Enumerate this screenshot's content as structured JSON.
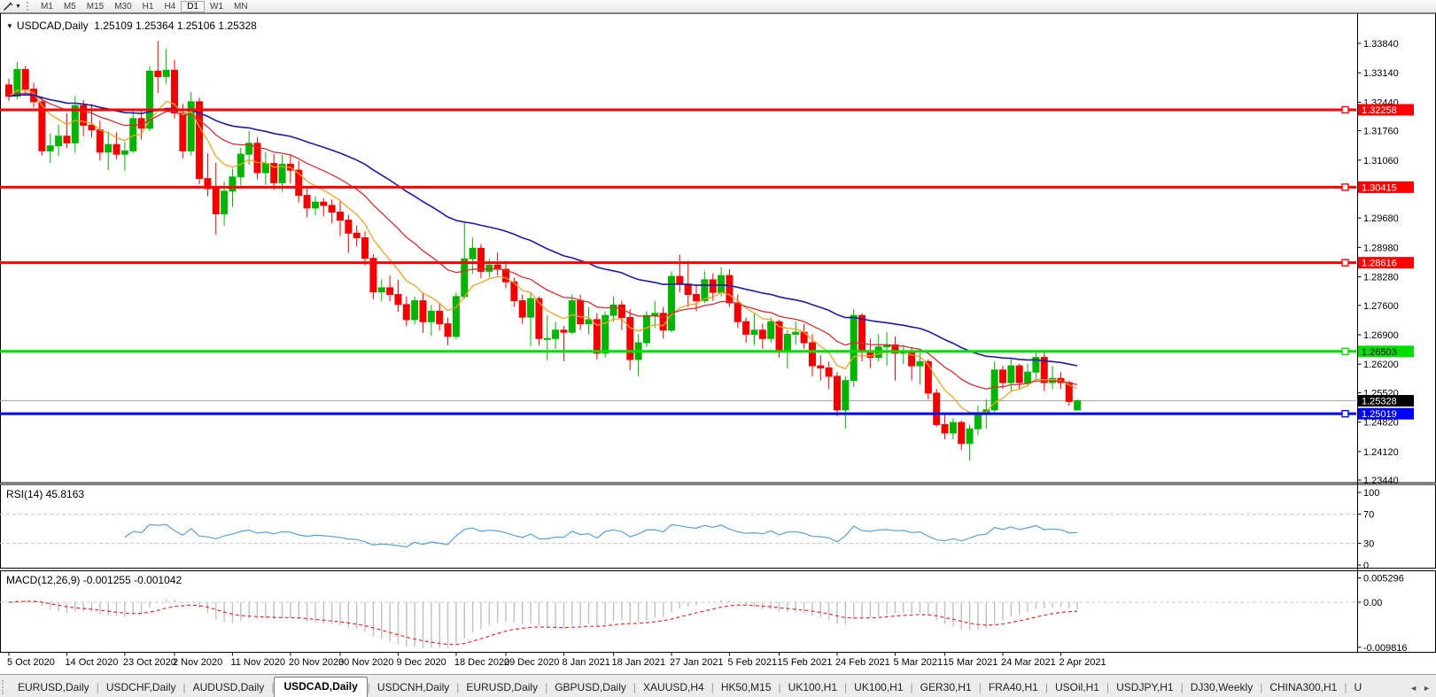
{
  "toolbar": {
    "timeframes": [
      "M1",
      "M5",
      "M15",
      "M30",
      "H1",
      "H4",
      "D1",
      "W1",
      "MN"
    ],
    "active_timeframe": "D1"
  },
  "chart": {
    "title_symbol": "USDCAD,Daily",
    "title_ohlc": "1.25109 1.25364 1.25106 1.25328"
  },
  "rsi": {
    "label": "RSI(14) 45.8163",
    "period": 14,
    "value": 45.8163,
    "axis_ticks": [
      100,
      70,
      30,
      0
    ],
    "level_lines": [
      70,
      30
    ]
  },
  "macd": {
    "label": "MACD(12,26,9) -0.001255 -0.001042",
    "params": [
      12,
      26,
      9
    ],
    "macd_value": -0.001255,
    "signal_value": -0.001042,
    "axis_ticks": [
      "0.005296",
      "0.00",
      "-0.009816"
    ],
    "axis_tick_values": [
      0.005296,
      0,
      -0.009816
    ]
  },
  "tabs": {
    "items": [
      "EURUSD,Daily",
      "USDCHF,Daily",
      "AUDUSD,Daily",
      "USDCAD,Daily",
      "USDCNH,Daily",
      "EURUSD,Daily",
      "GBPUSD,Daily",
      "XAUUSD,H4",
      "HK50,M15",
      "UK100,H1",
      "UK100,H1",
      "GER30,H1",
      "FRA40,H1",
      "USOil,H1",
      "USDJPY,H1",
      "DJ30,Weekly",
      "CHINA300,H1"
    ],
    "active_index": 3,
    "overflow_tab": "U",
    "scroll_left_arrow": "◄",
    "scroll_right_arrow": "►"
  },
  "colors": {
    "bull": "#00b400",
    "bear": "#f40000",
    "ma_fast": "#eda328",
    "ma_mid": "#d03030",
    "ma_slow": "#1a1aa8",
    "level_red": "#fe0000",
    "level_green": "#00dd00",
    "level_blue": "#0000fe",
    "current_line": "#a8a8a8",
    "current_box": "#000000",
    "rsi_line": "#58a0d8",
    "macd_hist": "#c0c0c0",
    "macd_signal": "#e03030",
    "dashed_level": "#c8c8c8",
    "axis_text": "#000000"
  },
  "chart_data": {
    "type": "candlestick",
    "symbol": "USDCAD",
    "period": "Daily",
    "title": "USDCAD,Daily 1.25109 1.25364 1.25106 1.25328",
    "current_candle": {
      "open": 1.25109,
      "high": 1.25364,
      "low": 1.25106,
      "close": 1.25328
    },
    "y_ticks": [
      "1.33840",
      "1.33140",
      "1.32440",
      "1.31760",
      "1.31060",
      "1.30360",
      "1.29680",
      "1.28980",
      "1.28280",
      "1.27600",
      "1.26900",
      "1.26200",
      "1.25520",
      "1.24820",
      "1.24120",
      "1.23440"
    ],
    "ylim": [
      1.2338,
      1.3456
    ],
    "grid": false,
    "levels": [
      {
        "value": 1.32258,
        "label": "1.32258",
        "color_key": "level_red",
        "kind": "resistance"
      },
      {
        "value": 1.30415,
        "label": "1.30415",
        "color_key": "level_red",
        "kind": "resistance"
      },
      {
        "value": 1.28616,
        "label": "1.28616",
        "color_key": "level_red",
        "kind": "resistance"
      },
      {
        "value": 1.26503,
        "label": "1.26503",
        "color_key": "level_green",
        "kind": "resistance"
      },
      {
        "value": 1.25019,
        "label": "1.25019",
        "color_key": "level_blue",
        "kind": "support"
      }
    ],
    "current_price": {
      "value": 1.25328,
      "label": "1.25328"
    },
    "moving_averages": [
      {
        "name": "fast",
        "period": 8,
        "method": "ema",
        "color_key": "ma_fast"
      },
      {
        "name": "mid",
        "period": 20,
        "method": "ema",
        "color_key": "ma_mid"
      },
      {
        "name": "slow",
        "period": 45,
        "method": "ema",
        "color_key": "ma_slow"
      }
    ],
    "x_labels": [
      [
        0,
        "5 Oct 2020"
      ],
      [
        7,
        "14 Oct 2020"
      ],
      [
        14,
        "23 Oct 2020"
      ],
      [
        20,
        "2 Nov 2020"
      ],
      [
        27,
        "11 Nov 2020"
      ],
      [
        34,
        "20 Nov 2020"
      ],
      [
        40,
        "30 Nov 2020"
      ],
      [
        47,
        "9 Dec 2020"
      ],
      [
        54,
        "18 Dec 2020"
      ],
      [
        60,
        "29 Dec 2020"
      ],
      [
        67,
        "8 Jan 2021"
      ],
      [
        73,
        "18 Jan 2021"
      ],
      [
        80,
        "27 Jan 2021"
      ],
      [
        87,
        "5 Feb 2021"
      ],
      [
        93,
        "15 Feb 2021"
      ],
      [
        100,
        "24 Feb 2021"
      ],
      [
        107,
        "5 Mar 2021"
      ],
      [
        113,
        "15 Mar 2021"
      ],
      [
        120,
        "24 Mar 2021"
      ],
      [
        127,
        "2 Apr 2021"
      ]
    ],
    "candles": [
      [
        1.3285,
        1.33,
        1.3247,
        1.3258
      ],
      [
        1.3258,
        1.334,
        1.325,
        1.3322
      ],
      [
        1.3322,
        1.333,
        1.3264,
        1.3275
      ],
      [
        1.3275,
        1.329,
        1.3232,
        1.3245
      ],
      [
        1.3245,
        1.3258,
        1.3117,
        1.3128
      ],
      [
        1.3128,
        1.3169,
        1.3099,
        1.314
      ],
      [
        1.314,
        1.319,
        1.3115,
        1.3163
      ],
      [
        1.3163,
        1.3218,
        1.3135,
        1.3147
      ],
      [
        1.3147,
        1.3259,
        1.3123,
        1.3236
      ],
      [
        1.3236,
        1.3249,
        1.3163,
        1.3189
      ],
      [
        1.3189,
        1.324,
        1.316,
        1.3178
      ],
      [
        1.3178,
        1.32,
        1.3105,
        1.3125
      ],
      [
        1.3125,
        1.3175,
        1.3082,
        1.3143
      ],
      [
        1.3143,
        1.3172,
        1.3108,
        1.312
      ],
      [
        1.312,
        1.3149,
        1.308,
        1.3128
      ],
      [
        1.3128,
        1.3227,
        1.3123,
        1.3205
      ],
      [
        1.3205,
        1.3225,
        1.3155,
        1.3182
      ],
      [
        1.3182,
        1.333,
        1.3175,
        1.3318
      ],
      [
        1.3318,
        1.339,
        1.3266,
        1.3305
      ],
      [
        1.3305,
        1.3371,
        1.3288,
        1.332
      ],
      [
        1.332,
        1.3345,
        1.3205,
        1.3218
      ],
      [
        1.3218,
        1.324,
        1.311,
        1.3128
      ],
      [
        1.3128,
        1.3268,
        1.3117,
        1.3245
      ],
      [
        1.3245,
        1.3255,
        1.3048,
        1.3062
      ],
      [
        1.3062,
        1.3122,
        1.302,
        1.3038
      ],
      [
        1.3038,
        1.31,
        1.2928,
        1.2978
      ],
      [
        1.2978,
        1.3055,
        1.295,
        1.3032
      ],
      [
        1.3032,
        1.3085,
        1.2995,
        1.3066
      ],
      [
        1.3066,
        1.3135,
        1.3045,
        1.312
      ],
      [
        1.312,
        1.3175,
        1.3095,
        1.3146
      ],
      [
        1.3146,
        1.316,
        1.306,
        1.3076
      ],
      [
        1.3076,
        1.3125,
        1.3047,
        1.3098
      ],
      [
        1.3098,
        1.312,
        1.3035,
        1.3052
      ],
      [
        1.3052,
        1.3118,
        1.303,
        1.3096
      ],
      [
        1.3096,
        1.312,
        1.305,
        1.3082
      ],
      [
        1.3082,
        1.3105,
        1.3005,
        1.3022
      ],
      [
        1.3022,
        1.3038,
        1.297,
        1.2992
      ],
      [
        1.2992,
        1.302,
        1.2975,
        1.3006
      ],
      [
        1.3006,
        1.3016,
        1.2972,
        1.2998
      ],
      [
        1.2998,
        1.3012,
        1.2955,
        1.2982
      ],
      [
        1.2982,
        1.3008,
        1.2925,
        1.2963
      ],
      [
        1.2963,
        1.2976,
        1.2885,
        1.2932
      ],
      [
        1.2932,
        1.295,
        1.29,
        1.2921
      ],
      [
        1.2921,
        1.2936,
        1.2855,
        1.2872
      ],
      [
        1.2872,
        1.2882,
        1.2775,
        1.2792
      ],
      [
        1.2792,
        1.2822,
        1.277,
        1.2802
      ],
      [
        1.2802,
        1.2831,
        1.277,
        1.2786
      ],
      [
        1.2786,
        1.2821,
        1.2745,
        1.2762
      ],
      [
        1.2762,
        1.2781,
        1.271,
        1.2726
      ],
      [
        1.2726,
        1.2781,
        1.2715,
        1.2771
      ],
      [
        1.2771,
        1.2791,
        1.2695,
        1.2721
      ],
      [
        1.2721,
        1.2761,
        1.2688,
        1.2746
      ],
      [
        1.2746,
        1.2766,
        1.27,
        1.2716
      ],
      [
        1.2716,
        1.2731,
        1.2665,
        1.2686
      ],
      [
        1.2686,
        1.2791,
        1.268,
        1.2781
      ],
      [
        1.2781,
        1.2956,
        1.2776,
        1.2871
      ],
      [
        1.2871,
        1.2921,
        1.2836,
        1.2896
      ],
      [
        1.2896,
        1.2906,
        1.2825,
        1.2841
      ],
      [
        1.2841,
        1.2871,
        1.2826,
        1.2856
      ],
      [
        1.2856,
        1.2886,
        1.2831,
        1.2846
      ],
      [
        1.2846,
        1.2866,
        1.2801,
        1.2816
      ],
      [
        1.2816,
        1.2826,
        1.2756,
        1.2771
      ],
      [
        1.2771,
        1.2786,
        1.2716,
        1.2732
      ],
      [
        1.2732,
        1.2791,
        1.2663,
        1.2776
      ],
      [
        1.2776,
        1.2781,
        1.2665,
        1.2681
      ],
      [
        1.2681,
        1.2736,
        1.2629,
        1.2681
      ],
      [
        1.2681,
        1.2721,
        1.2656,
        1.2701
      ],
      [
        1.2701,
        1.2711,
        1.2627,
        1.2696
      ],
      [
        1.2696,
        1.2786,
        1.2691,
        1.2771
      ],
      [
        1.2771,
        1.2785,
        1.2701,
        1.2716
      ],
      [
        1.2716,
        1.2756,
        1.2691,
        1.2726
      ],
      [
        1.2726,
        1.2741,
        1.2631,
        1.2646
      ],
      [
        1.2646,
        1.2746,
        1.2636,
        1.2736
      ],
      [
        1.2736,
        1.2781,
        1.2721,
        1.2761
      ],
      [
        1.2761,
        1.2771,
        1.2701,
        1.2731
      ],
      [
        1.2731,
        1.2751,
        1.2606,
        1.2631
      ],
      [
        1.2631,
        1.2691,
        1.2591,
        1.2671
      ],
      [
        1.2671,
        1.2746,
        1.2661,
        1.2736
      ],
      [
        1.2736,
        1.2771,
        1.2706,
        1.2741
      ],
      [
        1.2741,
        1.2756,
        1.2681,
        1.2701
      ],
      [
        1.2701,
        1.2841,
        1.2696,
        1.2829
      ],
      [
        1.2829,
        1.2881,
        1.2791,
        1.2811
      ],
      [
        1.2811,
        1.2866,
        1.2756,
        1.2786
      ],
      [
        1.2786,
        1.2811,
        1.2746,
        1.2771
      ],
      [
        1.2771,
        1.2841,
        1.2766,
        1.2821
      ],
      [
        1.2821,
        1.2836,
        1.2771,
        1.2791
      ],
      [
        1.2791,
        1.2851,
        1.2781,
        1.2831
      ],
      [
        1.2831,
        1.2846,
        1.2756,
        1.2766
      ],
      [
        1.2766,
        1.2786,
        1.2706,
        1.2721
      ],
      [
        1.2721,
        1.2731,
        1.2671,
        1.2691
      ],
      [
        1.2691,
        1.2741,
        1.2666,
        1.2701
      ],
      [
        1.2701,
        1.2716,
        1.2656,
        1.2681
      ],
      [
        1.2681,
        1.2731,
        1.2671,
        1.2721
      ],
      [
        1.2721,
        1.2726,
        1.2636,
        1.2651
      ],
      [
        1.2651,
        1.2701,
        1.2609,
        1.2691
      ],
      [
        1.2691,
        1.2721,
        1.2666,
        1.2696
      ],
      [
        1.2696,
        1.2716,
        1.2656,
        1.2671
      ],
      [
        1.2671,
        1.2691,
        1.2591,
        1.2616
      ],
      [
        1.2616,
        1.2641,
        1.2581,
        1.2611
      ],
      [
        1.2611,
        1.2626,
        1.2561,
        1.2591
      ],
      [
        1.2591,
        1.2601,
        1.2496,
        1.2511
      ],
      [
        1.2511,
        1.2591,
        1.2466,
        1.2581
      ],
      [
        1.2581,
        1.2751,
        1.2566,
        1.2736
      ],
      [
        1.2736,
        1.2741,
        1.2626,
        1.2651
      ],
      [
        1.2651,
        1.2681,
        1.2611,
        1.2636
      ],
      [
        1.2636,
        1.2691,
        1.2626,
        1.2661
      ],
      [
        1.2661,
        1.2696,
        1.2616,
        1.2666
      ],
      [
        1.2666,
        1.2686,
        1.2581,
        1.2646
      ],
      [
        1.2646,
        1.2666,
        1.2621,
        1.2651
      ],
      [
        1.2651,
        1.2661,
        1.2581,
        1.2616
      ],
      [
        1.2616,
        1.2646,
        1.2571,
        1.2626
      ],
      [
        1.2626,
        1.2631,
        1.2536,
        1.2551
      ],
      [
        1.2551,
        1.2561,
        1.2471,
        1.2476
      ],
      [
        1.2476,
        1.2501,
        1.2441,
        1.2456
      ],
      [
        1.2456,
        1.2491,
        1.2441,
        1.2481
      ],
      [
        1.2481,
        1.2486,
        1.2415,
        1.2431
      ],
      [
        1.2431,
        1.2476,
        1.239,
        1.2466
      ],
      [
        1.2466,
        1.2521,
        1.2451,
        1.2501
      ],
      [
        1.2501,
        1.2536,
        1.2466,
        1.2511
      ],
      [
        1.2511,
        1.2626,
        1.2506,
        1.2606
      ],
      [
        1.2606,
        1.2616,
        1.2561,
        1.2576
      ],
      [
        1.2576,
        1.2631,
        1.2556,
        1.2616
      ],
      [
        1.2616,
        1.2621,
        1.2561,
        1.2576
      ],
      [
        1.2576,
        1.2621,
        1.2566,
        1.2601
      ],
      [
        1.2601,
        1.2648,
        1.2586,
        1.2636
      ],
      [
        1.2636,
        1.2651,
        1.2556,
        1.2576
      ],
      [
        1.2576,
        1.2616,
        1.2561,
        1.2586
      ],
      [
        1.2586,
        1.2601,
        1.2561,
        1.2576
      ],
      [
        1.2576,
        1.2581,
        1.2521,
        1.2531
      ],
      [
        1.25109,
        1.25364,
        1.25106,
        1.25328
      ]
    ]
  }
}
